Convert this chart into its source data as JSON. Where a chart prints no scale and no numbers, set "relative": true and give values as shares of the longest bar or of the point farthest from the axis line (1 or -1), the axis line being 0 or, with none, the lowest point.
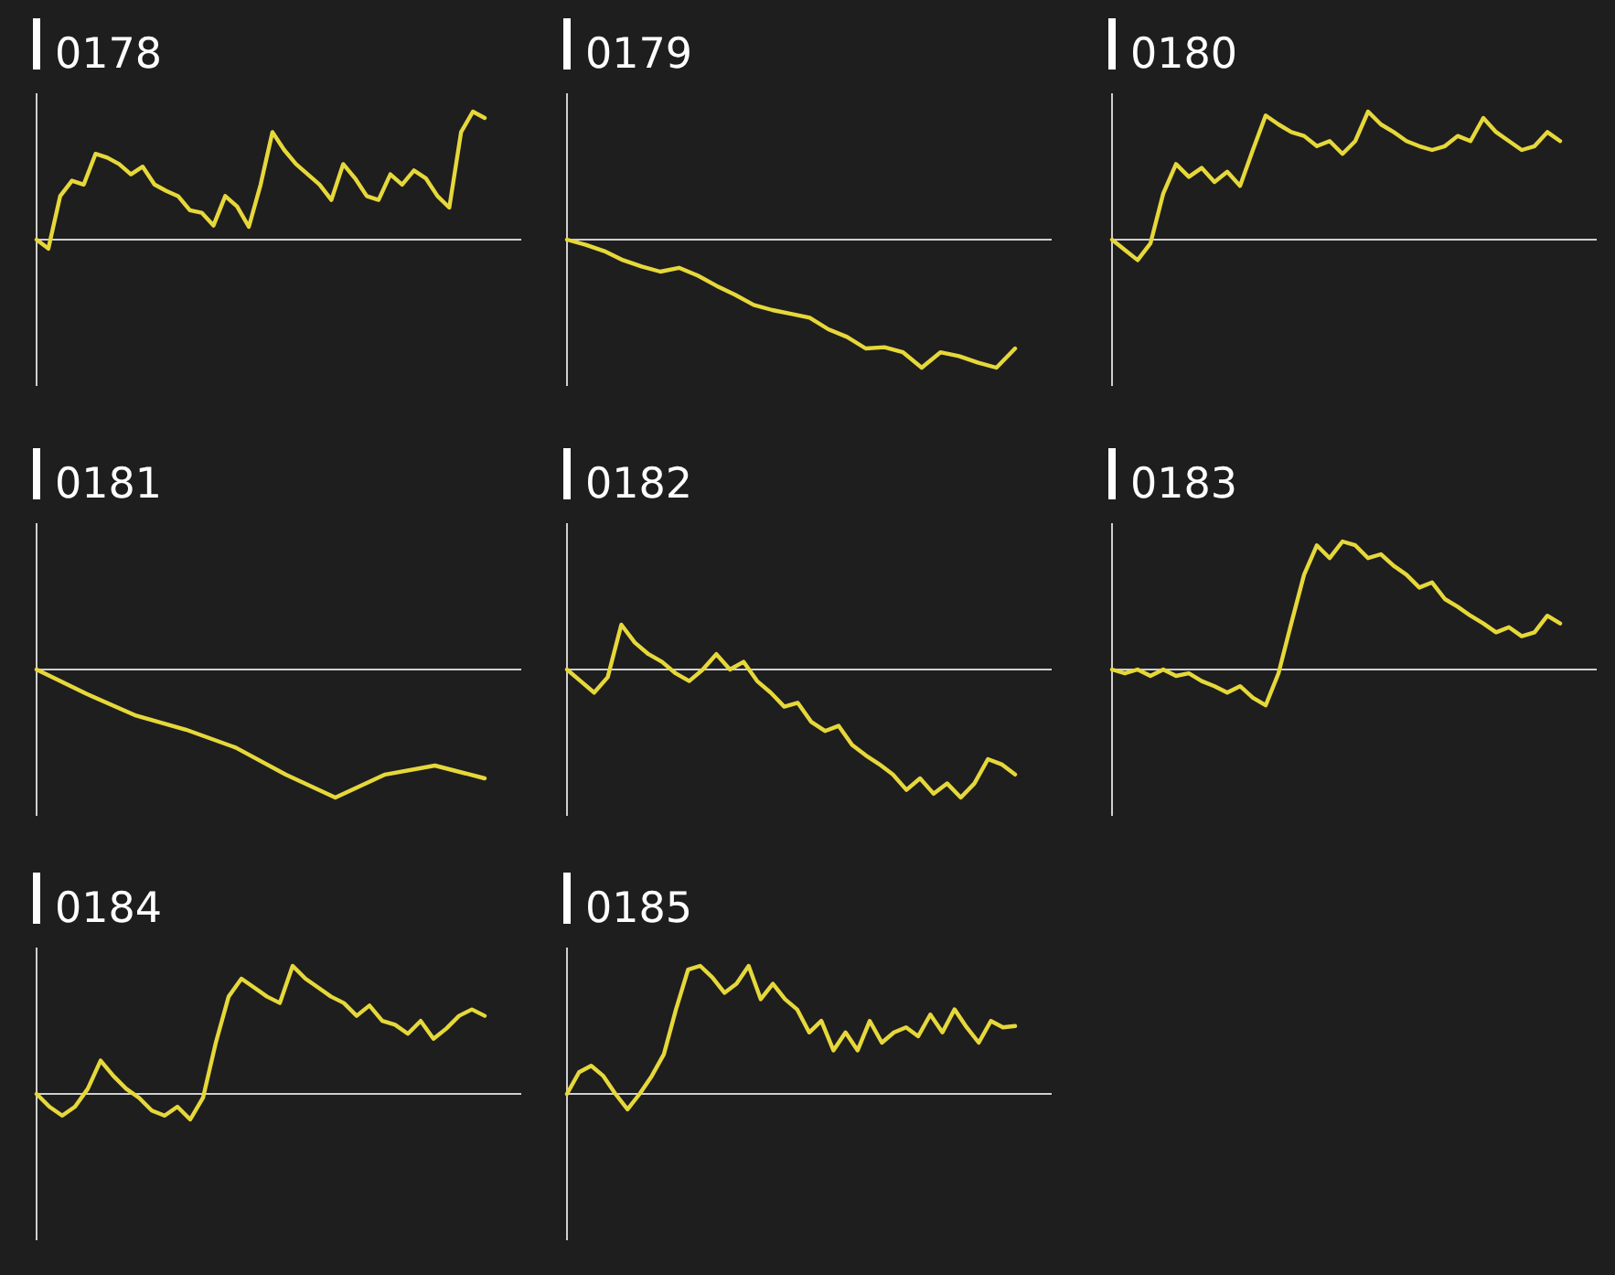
{
  "chart_data": [
    {
      "type": "line",
      "title": "0178",
      "relative": true,
      "color": "#e6d83a",
      "categories": [
        null,
        null,
        null,
        null,
        null,
        null,
        null,
        null,
        null,
        null,
        null,
        null,
        null,
        null,
        null,
        null,
        null,
        null,
        null,
        null,
        null,
        null,
        null,
        null,
        null,
        null,
        null,
        null,
        null,
        null,
        null,
        null,
        null,
        null,
        null,
        null,
        null,
        null,
        null
      ],
      "values": [
        0,
        -0.07,
        0.34,
        0.46,
        0.43,
        0.67,
        0.64,
        0.59,
        0.51,
        0.57,
        0.43,
        0.38,
        0.34,
        0.23,
        0.21,
        0.11,
        0.34,
        0.26,
        0.1,
        0.43,
        0.84,
        0.7,
        0.59,
        0.51,
        0.43,
        0.31,
        0.59,
        0.48,
        0.34,
        0.31,
        0.51,
        0.43,
        0.54,
        0.48,
        0.34,
        0.25,
        0.84,
        1,
        0.95
      ]
    },
    {
      "type": "line",
      "title": "0179",
      "relative": true,
      "color": "#e6d83a",
      "categories": [
        null,
        null,
        null,
        null,
        null,
        null,
        null,
        null,
        null,
        null,
        null,
        null,
        null,
        null,
        null,
        null,
        null,
        null,
        null,
        null,
        null,
        null,
        null,
        null,
        null
      ],
      "values": [
        0,
        -0.04,
        -0.09,
        -0.16,
        -0.21,
        -0.25,
        -0.22,
        -0.28,
        -0.36,
        -0.43,
        -0.51,
        -0.55,
        -0.58,
        -0.61,
        -0.7,
        -0.76,
        -0.85,
        -0.84,
        -0.88,
        -1,
        -0.88,
        -0.91,
        -0.96,
        -1,
        -0.85
      ]
    },
    {
      "type": "line",
      "title": "0180",
      "relative": true,
      "color": "#e6d83a",
      "categories": [
        null,
        null,
        null,
        null,
        null,
        null,
        null,
        null,
        null,
        null,
        null,
        null,
        null,
        null,
        null,
        null,
        null,
        null,
        null,
        null,
        null,
        null,
        null,
        null,
        null,
        null,
        null,
        null,
        null,
        null,
        null,
        null,
        null,
        null,
        null,
        null
      ],
      "values": [
        0,
        -0.08,
        -0.16,
        -0.03,
        0.36,
        0.59,
        0.49,
        0.56,
        0.45,
        0.53,
        0.42,
        0.7,
        0.97,
        0.9,
        0.84,
        0.81,
        0.73,
        0.77,
        0.67,
        0.77,
        1,
        0.9,
        0.84,
        0.77,
        0.73,
        0.7,
        0.73,
        0.81,
        0.77,
        0.95,
        0.84,
        0.77,
        0.7,
        0.73,
        0.84,
        0.77
      ]
    },
    {
      "type": "line",
      "title": "0181",
      "relative": true,
      "color": "#e6d83a",
      "categories": [
        null,
        null,
        null,
        null,
        null,
        null,
        null,
        null,
        null,
        null
      ],
      "values": [
        0,
        -0.19,
        -0.36,
        -0.47,
        -0.61,
        -0.82,
        -1,
        -0.82,
        -0.75,
        -0.85
      ]
    },
    {
      "type": "line",
      "title": "0182",
      "relative": true,
      "color": "#e6d83a",
      "categories": [
        null,
        null,
        null,
        null,
        null,
        null,
        null,
        null,
        null,
        null,
        null,
        null,
        null,
        null,
        null,
        null,
        null,
        null,
        null,
        null,
        null,
        null,
        null,
        null,
        null,
        null,
        null,
        null,
        null,
        null,
        null,
        null,
        null,
        null
      ],
      "values": [
        0,
        -0.09,
        -0.18,
        -0.06,
        0.35,
        0.21,
        0.12,
        0.06,
        -0.03,
        -0.09,
        0,
        0.12,
        0,
        0.06,
        -0.09,
        -0.18,
        -0.29,
        -0.26,
        -0.41,
        -0.48,
        -0.44,
        -0.59,
        -0.67,
        -0.74,
        -0.82,
        -0.94,
        -0.85,
        -0.97,
        -0.89,
        -1,
        -0.89,
        -0.7,
        -0.74,
        -0.82
      ]
    },
    {
      "type": "line",
      "title": "0183",
      "relative": true,
      "color": "#e6d83a",
      "categories": [
        null,
        null,
        null,
        null,
        null,
        null,
        null,
        null,
        null,
        null,
        null,
        null,
        null,
        null,
        null,
        null,
        null,
        null,
        null,
        null,
        null,
        null,
        null,
        null,
        null,
        null,
        null,
        null,
        null,
        null,
        null,
        null,
        null,
        null,
        null,
        null
      ],
      "values": [
        0,
        -0.03,
        0,
        -0.05,
        0,
        -0.05,
        -0.03,
        -0.09,
        -0.13,
        -0.18,
        -0.13,
        -0.22,
        -0.28,
        -0.03,
        0.36,
        0.74,
        0.97,
        0.87,
        1,
        0.97,
        0.87,
        0.9,
        0.81,
        0.74,
        0.64,
        0.68,
        0.55,
        0.49,
        0.42,
        0.36,
        0.29,
        0.33,
        0.26,
        0.29,
        0.42,
        0.36
      ]
    },
    {
      "type": "line",
      "title": "0184",
      "relative": true,
      "color": "#e6d83a",
      "categories": [
        null,
        null,
        null,
        null,
        null,
        null,
        null,
        null,
        null,
        null,
        null,
        null,
        null,
        null,
        null,
        null,
        null,
        null,
        null,
        null,
        null,
        null,
        null,
        null,
        null,
        null,
        null,
        null,
        null,
        null,
        null,
        null,
        null,
        null,
        null,
        null
      ],
      "values": [
        0,
        -0.1,
        -0.17,
        -0.1,
        0.04,
        0.26,
        0.14,
        0.04,
        -0.03,
        -0.13,
        -0.17,
        -0.1,
        -0.2,
        -0.03,
        0.4,
        0.76,
        0.9,
        0.83,
        0.76,
        0.71,
        1,
        0.9,
        0.83,
        0.76,
        0.71,
        0.61,
        0.69,
        0.57,
        0.54,
        0.47,
        0.57,
        0.43,
        0.51,
        0.61,
        0.66,
        0.61
      ]
    },
    {
      "type": "line",
      "title": "0185",
      "relative": true,
      "color": "#e6d83a",
      "categories": [
        null,
        null,
        null,
        null,
        null,
        null,
        null,
        null,
        null,
        null,
        null,
        null,
        null,
        null,
        null,
        null,
        null,
        null,
        null,
        null,
        null,
        null,
        null,
        null,
        null,
        null,
        null,
        null,
        null,
        null,
        null,
        null,
        null,
        null,
        null,
        null,
        null,
        null
      ],
      "values": [
        0,
        0.17,
        0.22,
        0.14,
        0,
        -0.12,
        0,
        0.14,
        0.31,
        0.66,
        0.97,
        1,
        0.91,
        0.79,
        0.86,
        1,
        0.74,
        0.86,
        0.74,
        0.66,
        0.48,
        0.57,
        0.34,
        0.48,
        0.34,
        0.57,
        0.4,
        0.48,
        0.52,
        0.45,
        0.62,
        0.48,
        0.66,
        0.52,
        0.4,
        0.57,
        0.52,
        0.53
      ]
    }
  ]
}
